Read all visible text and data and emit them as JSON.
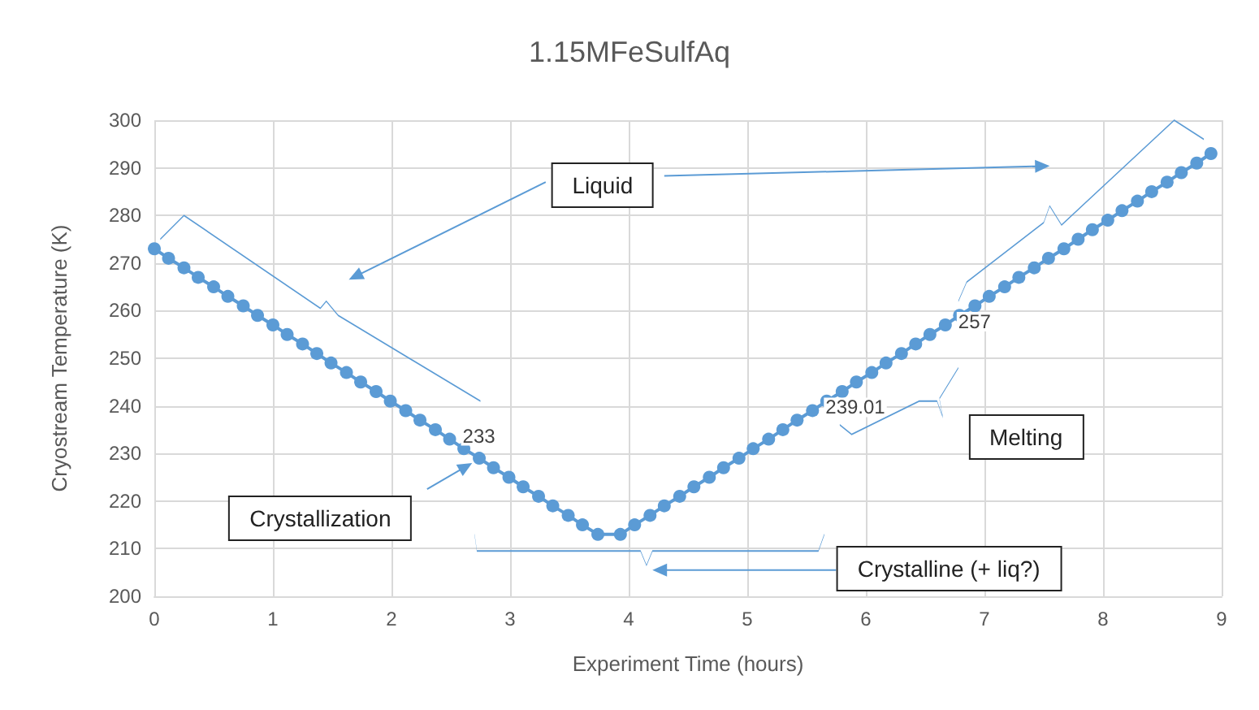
{
  "chart_data": {
    "type": "line",
    "title": "1.15MFeSulfAq",
    "xlabel": "Experiment Time (hours)",
    "ylabel": "Cryostream Temperature (K)",
    "x": [
      0,
      0.12,
      0.25,
      0.37,
      0.5,
      0.62,
      0.75,
      0.87,
      1.0,
      1.12,
      1.25,
      1.37,
      1.49,
      1.62,
      1.74,
      1.87,
      1.99,
      2.12,
      2.24,
      2.37,
      2.49,
      2.61,
      2.74,
      2.86,
      2.99,
      3.11,
      3.24,
      3.36,
      3.49,
      3.61,
      3.74,
      3.93,
      4.05,
      4.18,
      4.3,
      4.43,
      4.55,
      4.68,
      4.8,
      4.93,
      5.05,
      5.18,
      5.3,
      5.42,
      5.55,
      5.67,
      5.8,
      5.92,
      6.05,
      6.17,
      6.3,
      6.42,
      6.54,
      6.67,
      6.79,
      6.92,
      7.04,
      7.17,
      7.29,
      7.42,
      7.54,
      7.67,
      7.79,
      7.91,
      8.04,
      8.16,
      8.29,
      8.41,
      8.54,
      8.66,
      8.79,
      8.91
    ],
    "series": [
      {
        "color": "#5b9bd5",
        "values": [
          273,
          271,
          269,
          267,
          265,
          263,
          261,
          259,
          257,
          255,
          253,
          251,
          249,
          247,
          245,
          243,
          241,
          239,
          237,
          235,
          233,
          231,
          229,
          227,
          225,
          223,
          221,
          219,
          217,
          215,
          213,
          213,
          215,
          217,
          219,
          221,
          223,
          225,
          227,
          229,
          231,
          233,
          235,
          237,
          239.01,
          241,
          243,
          245,
          247,
          249,
          251,
          253,
          255,
          257,
          259,
          261,
          263,
          265,
          267,
          269,
          271,
          273,
          275,
          277,
          279,
          281,
          283,
          285,
          287,
          289,
          291,
          293
        ],
        "value_labels": [
          null,
          null,
          null,
          null,
          null,
          null,
          null,
          null,
          null,
          null,
          null,
          null,
          null,
          null,
          null,
          null,
          null,
          null,
          null,
          null,
          "233",
          null,
          null,
          null,
          null,
          null,
          null,
          null,
          null,
          null,
          null,
          null,
          null,
          null,
          null,
          null,
          null,
          null,
          null,
          null,
          null,
          null,
          null,
          null,
          "239.01",
          null,
          null,
          null,
          null,
          null,
          null,
          null,
          null,
          "257",
          null,
          null,
          null,
          null,
          null,
          null,
          null,
          null,
          null,
          null,
          null,
          null,
          null,
          null,
          null,
          null,
          null,
          null
        ]
      }
    ],
    "xlim": [
      0,
      9
    ],
    "xticks": [
      0,
      1,
      2,
      3,
      4,
      5,
      6,
      7,
      8,
      9
    ],
    "ylim": [
      200,
      300
    ],
    "yticks": [
      200,
      210,
      220,
      230,
      240,
      250,
      260,
      270,
      280,
      290,
      300
    ],
    "grid": true,
    "marker": "circle",
    "line_style": "solid",
    "annotations": [
      "Liquid",
      "Crystallization",
      "Melting",
      "Crystalline (+ liq?)"
    ]
  }
}
